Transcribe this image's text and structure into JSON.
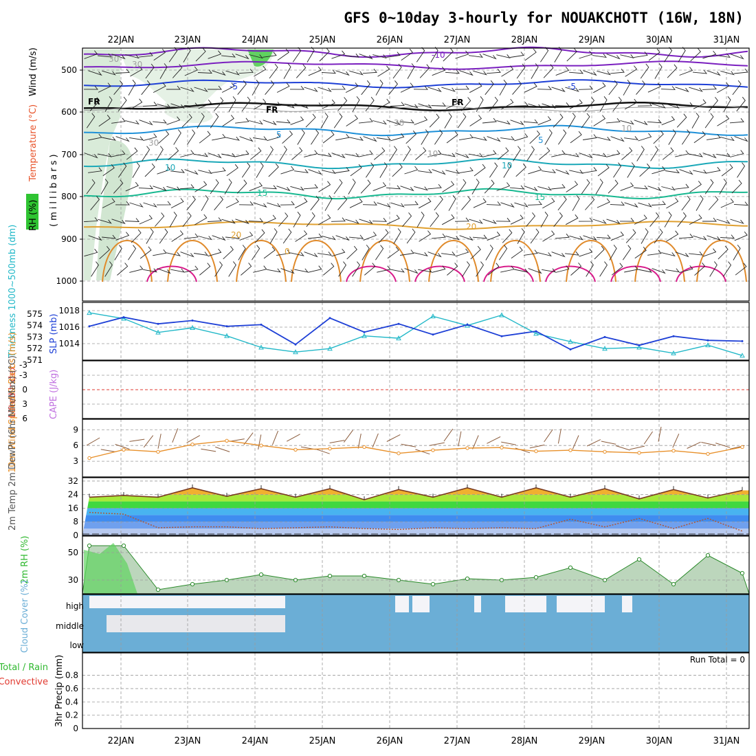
{
  "title": "GFS 0~10day 3-hourly for NOUAKCHOTT (16W, 18N)",
  "dates": [
    "22JAN",
    "23JAN",
    "24JAN",
    "25JAN",
    "26JAN",
    "27JAN",
    "28JAN",
    "29JAN",
    "30JAN",
    "31JAN"
  ],
  "colors": {
    "rh_green": "#2fc432",
    "temp_label": "#e8532a",
    "wind_label": "#1a1a1a",
    "thickness": "#22b8c8",
    "slp": "#1d3fd6",
    "lifted_index": "#e23a30",
    "cape": "#c070e0",
    "wind10m": "#e8902a",
    "temp2m": "#c0392b",
    "rh2m": "#2fb82f",
    "cloud": "#6baed6",
    "precip_total": "#2fb82f",
    "precip_conv": "#e23a30"
  },
  "panels": {
    "upper": {
      "ylabel_rh": "RH (%)",
      "ylabel_temp": "Temperature (°C)",
      "ylabel_wind": "Wind (m/s)",
      "ylabel_units": "(millibars)",
      "ticks": [
        "500",
        "600",
        "700",
        "800",
        "900",
        "1000"
      ],
      "contour_labels": [
        "-10",
        "-5",
        "-5",
        "5",
        "5",
        "10",
        "10",
        "15",
        "15",
        "20",
        "20",
        "0",
        "30",
        "30",
        "30",
        "30",
        "10",
        "10"
      ],
      "fr_labels": [
        "FR",
        "FR",
        "FR"
      ]
    },
    "thickness": {
      "ylabel_left": "Thickness 1000~500mb (dm)",
      "ylabel_right": "SLP (mb)",
      "ticks_left": [
        "571",
        "572",
        "573",
        "574",
        "575"
      ],
      "ticks_right": [
        "1014",
        "1016",
        "1018"
      ]
    },
    "stability": {
      "ylabel_left": "Lifted Index",
      "ylabel_right": "CAPE (J/kg)",
      "ticks": [
        "-3",
        "-3",
        "0",
        "3",
        "6"
      ]
    },
    "wind10m": {
      "ylabel": "10m Wind Speed & Barbs (m/s)",
      "ticks": [
        "3",
        "6",
        "9"
      ]
    },
    "temp2m": {
      "ylabel": "2m Temp 2m DewPt (6hr Min/Max) (°C)",
      "ticks": [
        "0",
        "8",
        "16",
        "24",
        "32"
      ]
    },
    "rh2m": {
      "ylabel": "2m RH (%)",
      "ticks": [
        "30",
        "50"
      ]
    },
    "cloud": {
      "ylabel": "Cloud Cover (%)",
      "ticks": [
        "high",
        "middle",
        "low"
      ]
    },
    "precip": {
      "ylabel": "3hr Precip (mm)",
      "legend_total": "Total / Rain",
      "legend_conv": "Convective",
      "run_total": "Run Total = 0",
      "ticks": [
        "0",
        "0.2",
        "0.4",
        "0.6",
        "0.8"
      ]
    }
  },
  "chart_data": [
    {
      "type": "line",
      "title": "",
      "panel": "Thickness 1000~500mb (dm) / SLP (mb)",
      "x": [
        "22JAN 00",
        "22JAN 12",
        "23JAN 00",
        "23JAN 12",
        "24JAN 00",
        "24JAN 12",
        "25JAN 00",
        "25JAN 12",
        "26JAN 00",
        "26JAN 12",
        "27JAN 00",
        "27JAN 12",
        "28JAN 00",
        "28JAN 12",
        "29JAN 00",
        "29JAN 12",
        "30JAN 00",
        "30JAN 12",
        "31JAN 00",
        "31JAN 12"
      ],
      "series": [
        {
          "name": "Thickness 1000~500mb",
          "values": [
            575.1,
            574.6,
            573.4,
            573.8,
            573.1,
            572.1,
            571.7,
            572.0,
            573.1,
            572.9,
            574.8,
            574.0,
            574.9,
            573.3,
            572.6,
            572.0,
            572.1,
            571.6,
            572.3,
            571.4
          ]
        },
        {
          "name": "SLP",
          "values": [
            1016.1,
            1017.2,
            1016.4,
            1016.8,
            1016.1,
            1016.3,
            1013.9,
            1017.1,
            1015.4,
            1016.4,
            1015.1,
            1016.3,
            1014.9,
            1015.5,
            1013.3,
            1014.8,
            1013.8,
            1014.9,
            1014.4,
            1014.3
          ]
        }
      ],
      "ylim_left": [
        571,
        576
      ],
      "ylim_right": [
        1012,
        1019
      ]
    },
    {
      "type": "line",
      "title": "",
      "panel": "Lifted Index / CAPE (J/kg)",
      "x": [
        "22JAN",
        "31JAN"
      ],
      "series": [
        {
          "name": "Lifted Index reference",
          "values": [
            0,
            0
          ]
        }
      ],
      "ylim": [
        6,
        -6
      ]
    },
    {
      "type": "line",
      "title": "",
      "panel": "10m Wind Speed & Barbs (m/s)",
      "x": [
        "22JAN 00",
        "22JAN 12",
        "23JAN 00",
        "23JAN 12",
        "24JAN 00",
        "24JAN 12",
        "25JAN 00",
        "25JAN 12",
        "26JAN 00",
        "26JAN 12",
        "27JAN 00",
        "27JAN 12",
        "28JAN 00",
        "28JAN 12",
        "29JAN 00",
        "29JAN 12",
        "30JAN 00",
        "30JAN 12",
        "31JAN 00",
        "31JAN 12"
      ],
      "series": [
        {
          "name": "10m Wind Speed",
          "values": [
            3.6,
            5.2,
            4.8,
            6.2,
            6.9,
            6.0,
            5.2,
            5.4,
            5.7,
            4.5,
            5.1,
            5.5,
            5.6,
            4.9,
            5.1,
            4.8,
            4.6,
            5.0,
            4.4,
            5.7
          ]
        }
      ],
      "ylim": [
        0,
        11
      ]
    },
    {
      "type": "area",
      "title": "",
      "panel": "2m Temp / 2m DewPt (°C)",
      "x": [
        "22JAN 00",
        "22JAN 12",
        "23JAN 00",
        "23JAN 12",
        "24JAN 00",
        "24JAN 12",
        "25JAN 00",
        "25JAN 12",
        "26JAN 00",
        "26JAN 12",
        "27JAN 00",
        "27JAN 12",
        "28JAN 00",
        "28JAN 12",
        "29JAN 00",
        "29JAN 12",
        "30JAN 00",
        "30JAN 12",
        "31JAN 00",
        "31JAN 12"
      ],
      "series": [
        {
          "name": "2m Temp",
          "values": [
            22.5,
            23.5,
            22.5,
            28.0,
            23.0,
            27.5,
            22.5,
            27.5,
            21.0,
            27.0,
            22.5,
            28.0,
            22.5,
            28.0,
            22.5,
            27.5,
            21.5,
            27.0,
            22.0,
            26.5
          ]
        },
        {
          "name": "2m DewPt",
          "values": [
            13.5,
            12.5,
            4.5,
            5.0,
            5.0,
            4.0,
            4.5,
            5.0,
            4.0,
            3.5,
            4.5,
            4.0,
            4.5,
            4.0,
            9.5,
            5.0,
            10.0,
            4.0,
            10.0,
            2.5
          ]
        }
      ],
      "ylim": [
        0,
        34
      ]
    },
    {
      "type": "area",
      "title": "",
      "panel": "2m RH (%)",
      "x": [
        "22JAN 00",
        "22JAN 12",
        "23JAN 00",
        "23JAN 12",
        "24JAN 00",
        "24JAN 12",
        "25JAN 00",
        "25JAN 12",
        "26JAN 00",
        "26JAN 12",
        "27JAN 00",
        "27JAN 12",
        "28JAN 00",
        "28JAN 12",
        "29JAN 00",
        "29JAN 12",
        "30JAN 00",
        "30JAN 12",
        "31JAN 00",
        "31JAN 12"
      ],
      "series": [
        {
          "name": "2m RH",
          "values": [
            55,
            55,
            23,
            27,
            30,
            34,
            30,
            33,
            33,
            30,
            27,
            31,
            30,
            32,
            39,
            30,
            45,
            27,
            48,
            35
          ]
        }
      ],
      "ylim": [
        20,
        62
      ]
    },
    {
      "type": "area",
      "title": "",
      "panel": "Cloud Cover (%)",
      "x": [
        "22JAN",
        "31JAN"
      ],
      "series": [
        {
          "name": "high",
          "values": [
            10,
            90
          ]
        },
        {
          "name": "middle",
          "values": [
            20,
            100
          ]
        },
        {
          "name": "low",
          "values": [
            100,
            100
          ]
        }
      ],
      "ylim": [
        0,
        100
      ]
    },
    {
      "type": "bar",
      "title": "",
      "panel": "3hr Precip (mm)",
      "categories": [
        "22JAN",
        "23JAN",
        "24JAN",
        "25JAN",
        "26JAN",
        "27JAN",
        "28JAN",
        "29JAN",
        "30JAN",
        "31JAN"
      ],
      "values": [
        0,
        0,
        0,
        0,
        0,
        0,
        0,
        0,
        0,
        0
      ],
      "ylim": [
        0,
        1
      ]
    }
  ]
}
